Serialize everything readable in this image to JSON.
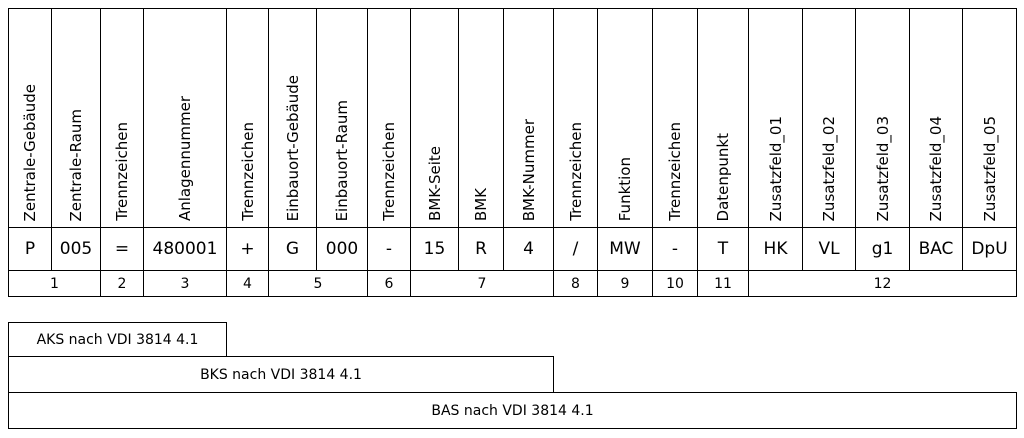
{
  "table": {
    "headers": [
      "Zentrale-Gebäude",
      "Zentrale-Raum",
      "Trennzeichen",
      "Anlagennummer",
      "Trennzeichen",
      "Einbauort-Gebäude",
      "Einbauort-Raum",
      "Trennzeichen",
      "BMK-Seite",
      "BMK",
      "BMK-Nummer",
      "Trennzeichen",
      "Funktion",
      "Trennzeichen",
      "Datenpunkt",
      "Zusatzfeld_01",
      "Zusatzfeld_02",
      "Zusatzfeld_03",
      "Zusatzfeld_04",
      "Zusatzfeld_05"
    ],
    "values": [
      "P",
      "005",
      "=",
      "480001",
      "+",
      "G",
      "000",
      "-",
      "15",
      "R",
      "4",
      "/",
      "MW",
      "-",
      "T",
      "HK",
      "VL",
      "g1",
      "BAC",
      "DpU"
    ],
    "groups": [
      "1",
      "2",
      "3",
      "4",
      "5",
      "6",
      "7",
      "8",
      "9",
      "10",
      "11",
      "12"
    ]
  },
  "spans": [
    "AKS nach VDI 3814 4.1",
    "BKS nach VDI 3814 4.1",
    "BAS nach VDI 3814 4.1"
  ]
}
